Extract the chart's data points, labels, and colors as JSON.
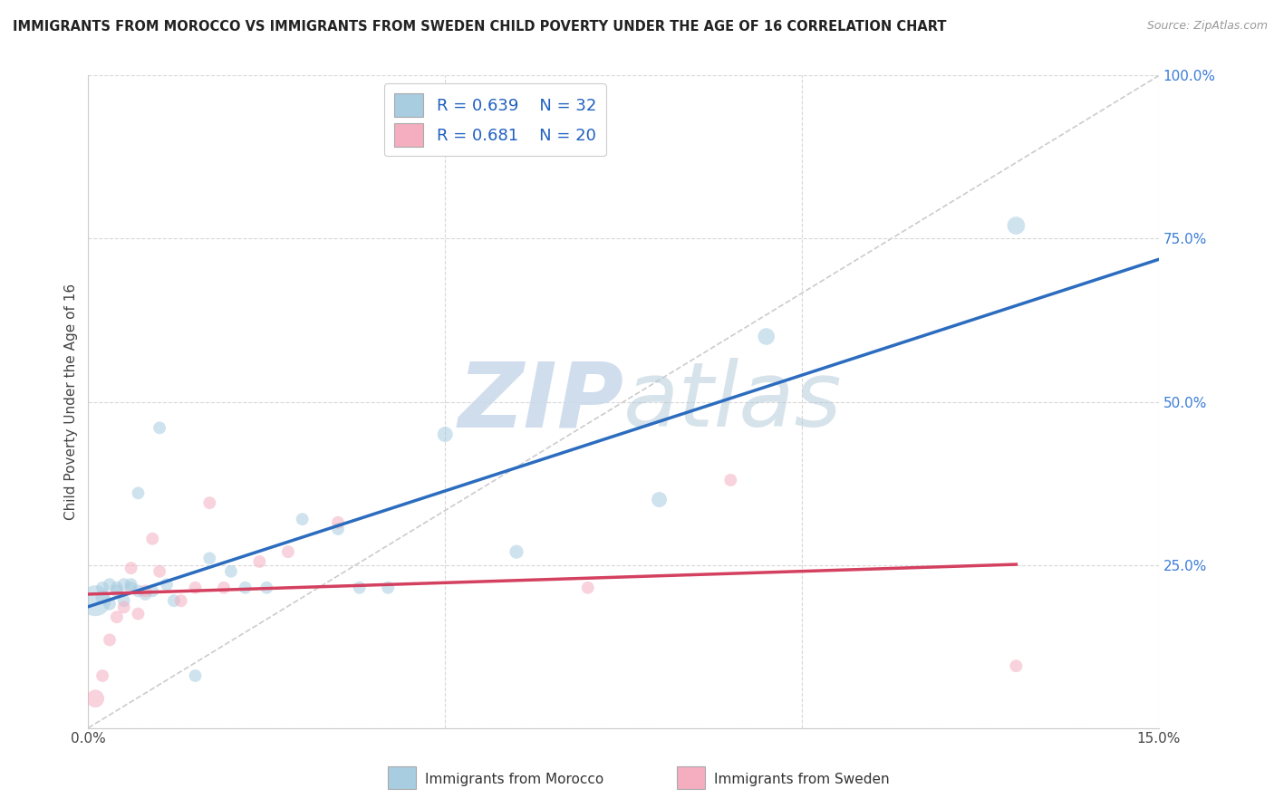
{
  "title": "IMMIGRANTS FROM MOROCCO VS IMMIGRANTS FROM SWEDEN CHILD POVERTY UNDER THE AGE OF 16 CORRELATION CHART",
  "source": "Source: ZipAtlas.com",
  "ylabel": "Child Poverty Under the Age of 16",
  "xlim": [
    0,
    0.15
  ],
  "ylim": [
    0,
    1.0
  ],
  "morocco_R": 0.639,
  "morocco_N": 32,
  "sweden_R": 0.681,
  "sweden_N": 20,
  "morocco_color": "#a8cce0",
  "sweden_color": "#f4aec0",
  "morocco_line_color": "#2b6cbf",
  "sweden_line_color": "#d44060",
  "ref_line_color": "#cccccc",
  "background_color": "#ffffff",
  "grid_color": "#d8d8d8",
  "watermark_color": "#c8d8ea",
  "morocco_x": [
    0.001,
    0.002,
    0.002,
    0.003,
    0.003,
    0.004,
    0.004,
    0.005,
    0.005,
    0.006,
    0.006,
    0.007,
    0.007,
    0.008,
    0.009,
    0.01,
    0.011,
    0.012,
    0.015,
    0.017,
    0.02,
    0.022,
    0.025,
    0.03,
    0.035,
    0.038,
    0.042,
    0.05,
    0.06,
    0.08,
    0.095,
    0.13
  ],
  "morocco_y": [
    0.195,
    0.2,
    0.215,
    0.22,
    0.19,
    0.21,
    0.215,
    0.22,
    0.195,
    0.22,
    0.215,
    0.21,
    0.36,
    0.205,
    0.21,
    0.46,
    0.22,
    0.195,
    0.08,
    0.26,
    0.24,
    0.215,
    0.215,
    0.32,
    0.305,
    0.215,
    0.215,
    0.45,
    0.27,
    0.35,
    0.6,
    0.77
  ],
  "sweden_x": [
    0.001,
    0.002,
    0.003,
    0.004,
    0.005,
    0.006,
    0.007,
    0.008,
    0.009,
    0.01,
    0.013,
    0.015,
    0.017,
    0.019,
    0.024,
    0.028,
    0.035,
    0.07,
    0.09,
    0.13
  ],
  "sweden_y": [
    0.045,
    0.08,
    0.135,
    0.17,
    0.185,
    0.245,
    0.175,
    0.21,
    0.29,
    0.24,
    0.195,
    0.215,
    0.345,
    0.215,
    0.255,
    0.27,
    0.315,
    0.215,
    0.38,
    0.095
  ],
  "morocco_size": [
    600,
    120,
    100,
    100,
    100,
    100,
    100,
    100,
    100,
    100,
    100,
    100,
    100,
    100,
    100,
    100,
    100,
    100,
    100,
    100,
    100,
    100,
    100,
    100,
    100,
    100,
    100,
    150,
    120,
    150,
    180,
    200
  ],
  "sweden_size": [
    200,
    100,
    100,
    100,
    100,
    100,
    100,
    100,
    100,
    100,
    100,
    100,
    100,
    100,
    100,
    100,
    100,
    100,
    100,
    100
  ]
}
